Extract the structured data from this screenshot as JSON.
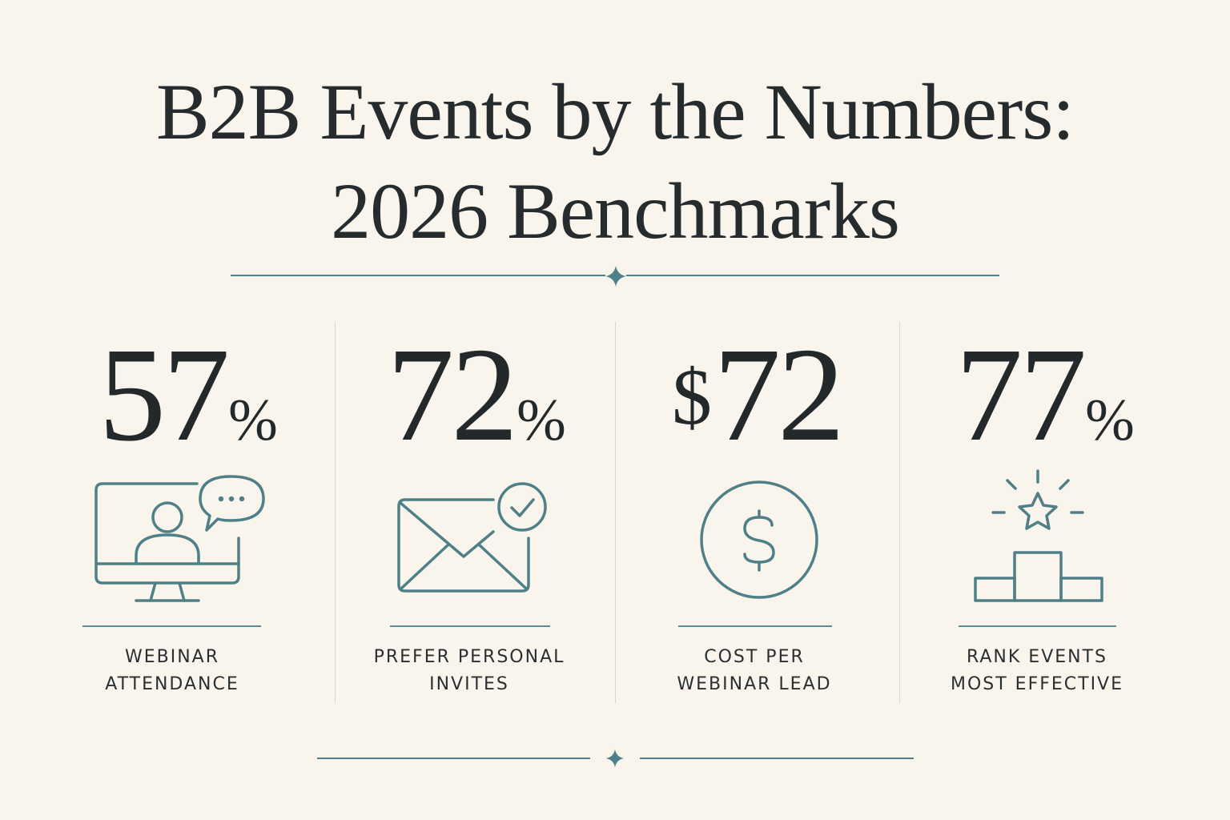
{
  "title": {
    "line1": "B2B Events by the Numbers:",
    "line2": "2026 Benchmarks"
  },
  "colors": {
    "background": "#f9f5ed",
    "text": "#23282b",
    "accent": "#4f8088"
  },
  "stats": [
    {
      "value": "57",
      "suffix": "%",
      "prefix": "",
      "icon": "webinar-monitor-chat-icon",
      "label_line1": "WEBINAR",
      "label_line2": "ATTENDANCE"
    },
    {
      "value": "72",
      "suffix": "%",
      "prefix": "",
      "icon": "envelope-check-icon",
      "label_line1": "PREFER PERSONAL",
      "label_line2": "INVITES"
    },
    {
      "value": "72",
      "suffix": "",
      "prefix": "$",
      "icon": "dollar-coin-icon",
      "label_line1": "COST PER",
      "label_line2": "WEBINAR LEAD"
    },
    {
      "value": "77",
      "suffix": "%",
      "prefix": "",
      "icon": "star-podium-icon",
      "label_line1": "RANK EVENTS",
      "label_line2": "MOST EFFECTIVE"
    }
  ]
}
